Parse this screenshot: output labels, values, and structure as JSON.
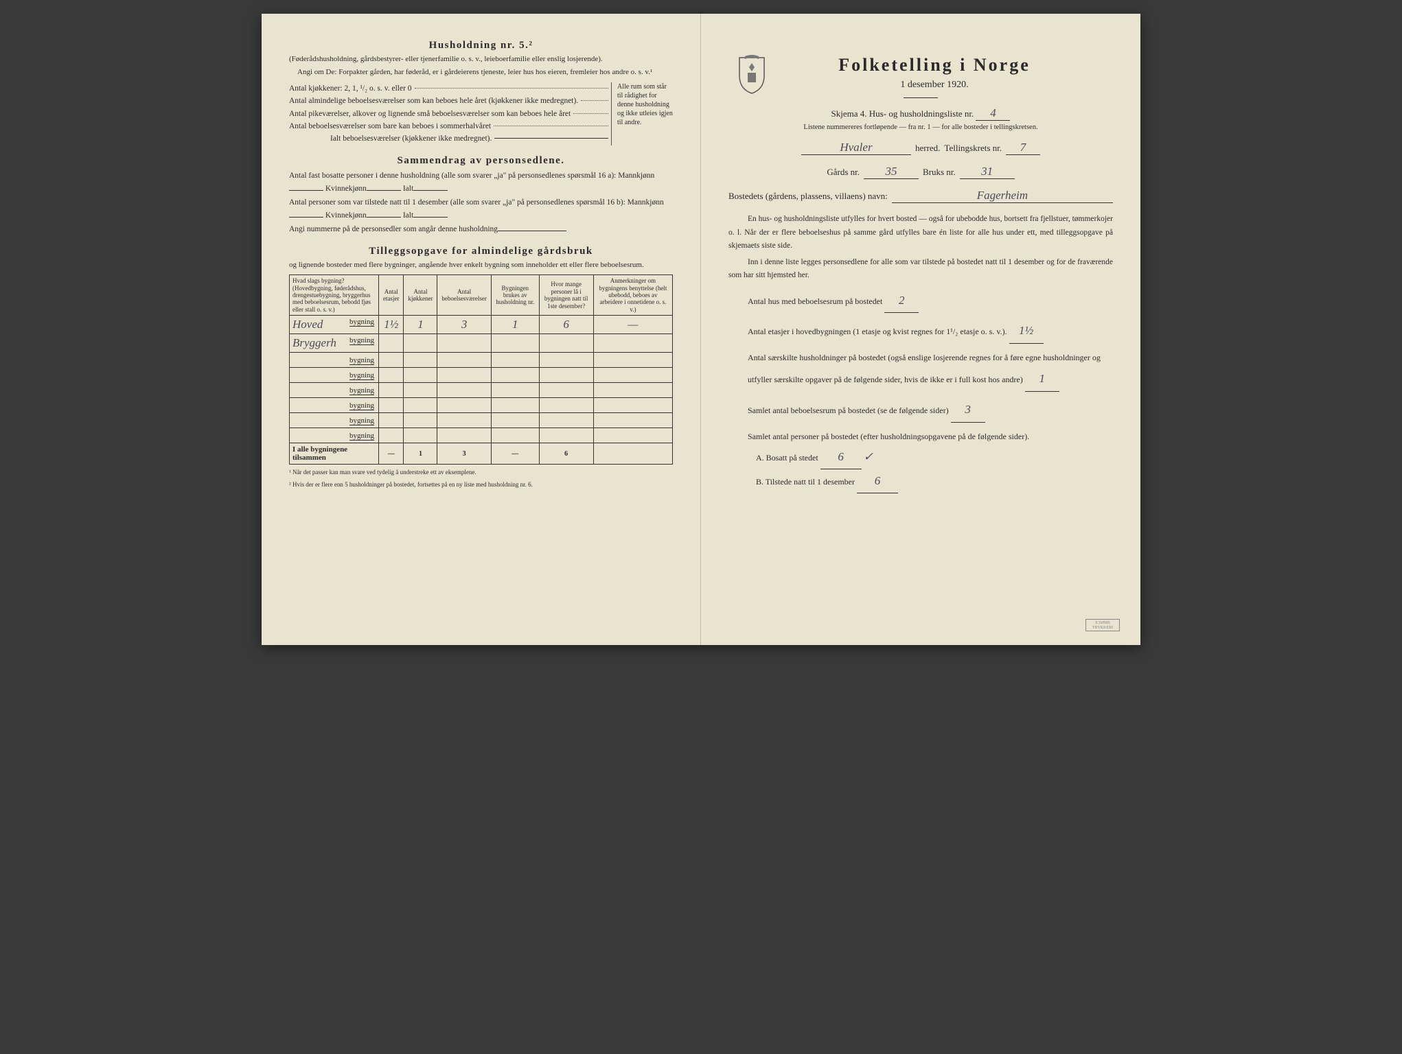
{
  "left": {
    "husholdning_title": "Husholdning nr. 5.²",
    "husholdning_sub": "(Føderådshusholdning, gårdsbestyrer- eller tjenerfamilie o. s. v., leieboerfamilie eller enslig losjerende).",
    "angi_line": "Angi om De: Forpakter gården, har føderåd, er i gårdeierens tjeneste, leier hus hos eieren, fremleier hos andre o. s. v.¹",
    "kjokken_line": "Antal kjøkkener: 2, 1, ¹/₂ o. s. v. eller 0",
    "alm_label": "Antal almindelige beboelsesværelser som kan beboes hele året (kjøkkener ikke medregnet).",
    "pike_label": "Antal pikeværelser, alkover og lignende små beboelsesværelser som kan beboes hele året",
    "sommer_label": "Antal beboelsesværelser som bare kan beboes i sommerhalvåret",
    "ialt_label": "Ialt beboelsesværelser (kjøkkener ikke medregnet).",
    "brace_text": "Alle rum som står til rådighet for denne husholdning og ikke utleies igjen til andre.",
    "sammen_title": "Sammendrag av personsedlene.",
    "sammen_l1": "Antal fast bosatte personer i denne husholdning (alle som svarer „ja\" på personsedlenes spørsmål 16 a): Mannkjønn",
    "kvinne": "Kvinnekjønn",
    "ialt": "Ialt",
    "sammen_l2": "Antal personer som var tilstede natt til 1 desember (alle som svarer „ja\" på personsedlenes spørsmål 16 b): Mannkjønn",
    "angi_num": "Angi nummerne på de personsedler som angår denne husholdning",
    "tillegg_title": "Tilleggsopgave for almindelige gårdsbruk",
    "tillegg_intro": "og lignende bosteder med flere bygninger, angående hver enkelt bygning som inneholder ett eller flere beboelsesrum.",
    "table": {
      "headers": [
        "Hvad slags bygning?\n(Hovedbygning, føderådshus, drengestuebygning, bryggerhus med beboelsesrum, bebodd fjøs eller stall o. s. v.)",
        "Antal etasjer",
        "Antal kjøkkener",
        "Antal beboelsesværelser",
        "Bygningen brukes av husholdning nr.",
        "Hvor mange personer lå i bygningen natt til 1ste desember?",
        "Anmerkninger om bygningens benyttelse (helt ubebodd, beboes av arbeidere i onnetidene o. s. v.)"
      ],
      "rows": [
        {
          "label": "Hoved",
          "suffix": "bygning",
          "etasjer": "1½",
          "kjokken": "1",
          "beboel": "3",
          "hushold": "1",
          "personer": "6",
          "anm": "—"
        },
        {
          "label": "Bryggerh",
          "suffix": "bygning",
          "etasjer": "",
          "kjokken": "",
          "beboel": "",
          "hushold": "",
          "personer": "",
          "anm": ""
        },
        {
          "label": "",
          "suffix": "bygning",
          "etasjer": "",
          "kjokken": "",
          "beboel": "",
          "hushold": "",
          "personer": "",
          "anm": ""
        },
        {
          "label": "",
          "suffix": "bygning",
          "etasjer": "",
          "kjokken": "",
          "beboel": "",
          "hushold": "",
          "personer": "",
          "anm": ""
        },
        {
          "label": "",
          "suffix": "bygning",
          "etasjer": "",
          "kjokken": "",
          "beboel": "",
          "hushold": "",
          "personer": "",
          "anm": ""
        },
        {
          "label": "",
          "suffix": "bygning",
          "etasjer": "",
          "kjokken": "",
          "beboel": "",
          "hushold": "",
          "personer": "",
          "anm": ""
        },
        {
          "label": "",
          "suffix": "bygning",
          "etasjer": "",
          "kjokken": "",
          "beboel": "",
          "hushold": "",
          "personer": "",
          "anm": ""
        },
        {
          "label": "",
          "suffix": "bygning",
          "etasjer": "",
          "kjokken": "",
          "beboel": "",
          "hushold": "",
          "personer": "",
          "anm": ""
        }
      ],
      "totals_label": "I alle bygningene tilsammen",
      "totals": {
        "etasjer": "—",
        "kjokken": "1",
        "beboel": "3",
        "hushold": "—",
        "personer": "6",
        "anm": ""
      }
    },
    "footnote1": "¹ Når det passer kan man svare ved tydelig å understreke ett av eksemplene.",
    "footnote2": "² Hvis der er flere enn 5 husholdninger på bostedet, fortsettes på en ny liste med husholdning nr. 6."
  },
  "right": {
    "title": "Folketelling i Norge",
    "date": "1 desember 1920.",
    "skjema": "Skjema 4. Hus- og husholdningsliste nr.",
    "skjema_val": "4",
    "list_note": "Listene nummereres fortløpende — fra nr. 1 — for alle bosteder i tellingskretsen.",
    "herred_val": "Hvaler",
    "herred_label": "herred.",
    "krets_label": "Tellingskrets nr.",
    "krets_val": "7",
    "gards_label": "Gårds nr.",
    "gards_val": "35",
    "bruks_label": "Bruks nr.",
    "bruks_val": "31",
    "bosted_label": "Bostedets (gårdens, plassens, villaens) navn:",
    "bosted_val": "Fagerheim",
    "para1": "En hus- og husholdningsliste utfylles for hvert bosted — også for ubebodde hus, bortsett fra fjellstuer, tømmerkojer o. l. Når der er flere beboelseshus på samme gård utfylles bare én liste for alle hus under ett, med tilleggsopgave på skjemaets siste side.",
    "para2": "Inn i denne liste legges personsedlene for alle som var tilstede på bostedet natt til 1 desember og for de fraværende som har sitt hjemsted her.",
    "antal_hus": "Antal hus med beboelsesrum på bostedet",
    "antal_hus_val": "2",
    "antal_etasjer": "Antal etasjer i hovedbygningen (1 etasje og kvist regnes for 1¹/₂ etasje o. s. v.).",
    "antal_etasjer_val": "1½",
    "saerskilte": "Antal særskilte husholdninger på bostedet (også enslige losjerende regnes for å føre egne husholdninger og utfyller særskilte opgaver på de følgende sider, hvis de ikke er i full kost hos andre)",
    "saerskilte_val": "1",
    "samlet_rum": "Samlet antal beboelsesrum på bostedet (se de følgende sider)",
    "samlet_rum_val": "3",
    "samlet_pers": "Samlet antal personer på bostedet (efter husholdningsopgavene på de følgende sider).",
    "a_label": "A. Bosatt på stedet",
    "a_val": "6",
    "b_label": "B. Tilstede natt til 1 desember",
    "b_val": "6"
  },
  "colors": {
    "paper": "#e8e4d0",
    "ink": "#2a2a2a",
    "handwriting": "#4a4a5a"
  }
}
